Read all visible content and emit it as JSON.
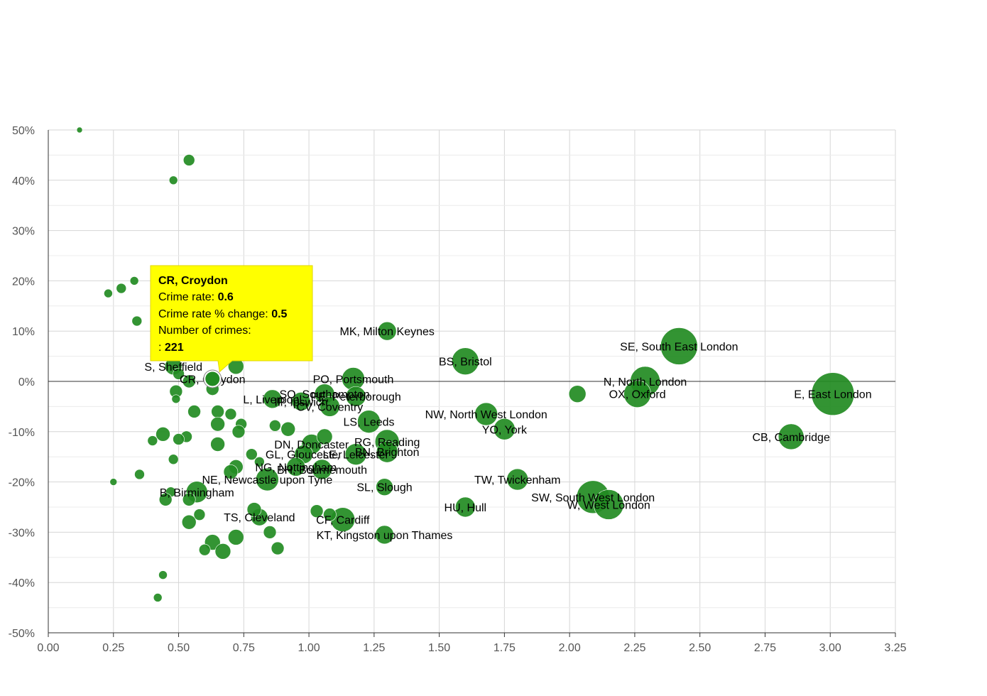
{
  "chart_data": {
    "type": "scatter",
    "x_ticks": [
      "0.00",
      "0.25",
      "0.50",
      "0.75",
      "1.00",
      "1.25",
      "1.50",
      "1.75",
      "2.00",
      "2.25",
      "2.50",
      "2.75",
      "3.00",
      "3.25"
    ],
    "y_ticks": [
      "50%",
      "40%",
      "30%",
      "20%",
      "10%",
      "0%",
      "-10%",
      "-20%",
      "-30%",
      "-40%",
      "-50%"
    ],
    "xlim": [
      0,
      3.25
    ],
    "ylim": [
      -50,
      50
    ],
    "grid": true,
    "bubble_color": "#228B22",
    "points": [
      {
        "label": "E, East London",
        "x": 3.01,
        "y": -2.5,
        "r": 30
      },
      {
        "label": "SE, South East London",
        "x": 2.42,
        "y": 7,
        "r": 26
      },
      {
        "label": "N, North London",
        "x": 2.29,
        "y": 0,
        "r": 21
      },
      {
        "label": "OX, Oxford",
        "x": 2.26,
        "y": -2.5,
        "r": 19
      },
      {
        "label": "CB, Cambridge",
        "x": 2.85,
        "y": -11,
        "r": 18
      },
      {
        "label": "SW, South West London",
        "x": 2.09,
        "y": -23,
        "r": 23
      },
      {
        "label": "W, West London",
        "x": 2.15,
        "y": -24.5,
        "r": 21
      },
      {
        "label": "",
        "x": 2.03,
        "y": -2.5,
        "r": 12
      },
      {
        "label": "BS, Bristol",
        "x": 1.6,
        "y": 4,
        "r": 19
      },
      {
        "label": "MK, Milton Keynes",
        "x": 1.3,
        "y": 10,
        "r": 13
      },
      {
        "label": "NW, North West London",
        "x": 1.68,
        "y": -6.5,
        "r": 16
      },
      {
        "label": "YO, York",
        "x": 1.75,
        "y": -9.5,
        "r": 15
      },
      {
        "label": "TW, Twickenham",
        "x": 1.8,
        "y": -19.5,
        "r": 15
      },
      {
        "label": "HU, Hull",
        "x": 1.6,
        "y": -25,
        "r": 14
      },
      {
        "label": "SL, Slough",
        "x": 1.29,
        "y": -21,
        "r": 12
      },
      {
        "label": "KT, Kingston upon Thames",
        "x": 1.29,
        "y": -30.5,
        "r": 13
      },
      {
        "label": "CF, Cardiff",
        "x": 1.13,
        "y": -27.5,
        "r": 17
      },
      {
        "label": "PO, Portsmouth",
        "x": 1.17,
        "y": 0.5,
        "r": 16
      },
      {
        "label": "SO, Southampton",
        "x": 1.06,
        "y": -2.5,
        "r": 14
      },
      {
        "label": "PE, Peterborough",
        "x": 1.18,
        "y": -3,
        "r": 14
      },
      {
        "label": "CV, Coventry",
        "x": 1.08,
        "y": -5,
        "r": 14
      },
      {
        "label": "LS, Leeds",
        "x": 1.23,
        "y": -8,
        "r": 16
      },
      {
        "label": "RG, Reading",
        "x": 1.3,
        "y": -12,
        "r": 17
      },
      {
        "label": "DN, Doncaster",
        "x": 1.01,
        "y": -12.5,
        "r": 14
      },
      {
        "label": "LE, Leicester",
        "x": 1.18,
        "y": -14.5,
        "r": 15
      },
      {
        "label": "BN, Brighton",
        "x": 1.3,
        "y": -14,
        "r": 15
      },
      {
        "label": "GL, Gloucester",
        "x": 0.98,
        "y": -14.5,
        "r": 13
      },
      {
        "label": "BH, Bournemouth",
        "x": 1.05,
        "y": -17.5,
        "r": 14
      },
      {
        "label": "NG, Nottingham",
        "x": 0.95,
        "y": -17,
        "r": 13
      },
      {
        "label": "NE, Newcastle upon Tyne",
        "x": 0.84,
        "y": -19.5,
        "r": 16
      },
      {
        "label": "TS, Cleveland",
        "x": 0.81,
        "y": -27,
        "r": 12
      },
      {
        "label": "L, Liverpool",
        "x": 0.86,
        "y": -3.5,
        "r": 13
      },
      {
        "label": "IP, Ipswich",
        "x": 0.97,
        "y": -4,
        "r": 13
      },
      {
        "label": "B, Birmingham",
        "x": 0.57,
        "y": -22,
        "r": 15
      },
      {
        "label": "S, Sheffield",
        "x": 0.48,
        "y": 3,
        "r": 12
      },
      {
        "label": "CR, Croydon",
        "x": 0.63,
        "y": 0.5,
        "r": 10
      },
      {
        "label": "",
        "x": 0.12,
        "y": 50,
        "r": 4
      },
      {
        "label": "",
        "x": 0.54,
        "y": 44,
        "r": 8
      },
      {
        "label": "",
        "x": 0.48,
        "y": 40,
        "r": 6
      },
      {
        "label": "",
        "x": 0.33,
        "y": 20,
        "r": 6
      },
      {
        "label": "",
        "x": 0.28,
        "y": 18.5,
        "r": 7
      },
      {
        "label": "",
        "x": 0.23,
        "y": 17.5,
        "r": 6
      },
      {
        "label": "",
        "x": 0.34,
        "y": 12,
        "r": 7
      },
      {
        "label": "",
        "x": 0.72,
        "y": 3,
        "r": 11
      },
      {
        "label": "",
        "x": 0.5,
        "y": 1.5,
        "r": 8
      },
      {
        "label": "",
        "x": 0.54,
        "y": 0,
        "r": 9
      },
      {
        "label": "",
        "x": 0.63,
        "y": -1.5,
        "r": 9
      },
      {
        "label": "",
        "x": 0.49,
        "y": -2,
        "r": 9
      },
      {
        "label": "",
        "x": 0.49,
        "y": -3.5,
        "r": 6
      },
      {
        "label": "",
        "x": 0.56,
        "y": -6,
        "r": 9
      },
      {
        "label": "",
        "x": 0.65,
        "y": -6,
        "r": 9
      },
      {
        "label": "",
        "x": 0.7,
        "y": -6.5,
        "r": 8
      },
      {
        "label": "",
        "x": 0.65,
        "y": -8.5,
        "r": 10
      },
      {
        "label": "",
        "x": 0.74,
        "y": -8.5,
        "r": 8
      },
      {
        "label": "",
        "x": 0.87,
        "y": -8.8,
        "r": 8
      },
      {
        "label": "",
        "x": 0.92,
        "y": -9.5,
        "r": 10
      },
      {
        "label": "",
        "x": 0.73,
        "y": -10,
        "r": 9
      },
      {
        "label": "",
        "x": 0.44,
        "y": -10.5,
        "r": 10
      },
      {
        "label": "",
        "x": 0.53,
        "y": -11,
        "r": 8
      },
      {
        "label": "",
        "x": 0.5,
        "y": -11.5,
        "r": 8
      },
      {
        "label": "",
        "x": 0.4,
        "y": -11.8,
        "r": 7
      },
      {
        "label": "",
        "x": 0.65,
        "y": -12.5,
        "r": 10
      },
      {
        "label": "",
        "x": 1.06,
        "y": -11,
        "r": 11
      },
      {
        "label": "",
        "x": 0.78,
        "y": -14.5,
        "r": 8
      },
      {
        "label": "",
        "x": 0.48,
        "y": -15.5,
        "r": 7
      },
      {
        "label": "",
        "x": 0.81,
        "y": -16,
        "r": 7
      },
      {
        "label": "",
        "x": 0.72,
        "y": -17,
        "r": 10
      },
      {
        "label": "",
        "x": 0.7,
        "y": -18,
        "r": 10
      },
      {
        "label": "",
        "x": 0.35,
        "y": -18.5,
        "r": 7
      },
      {
        "label": "",
        "x": 0.25,
        "y": -20,
        "r": 5
      },
      {
        "label": "",
        "x": 0.47,
        "y": -22,
        "r": 7
      },
      {
        "label": "",
        "x": 0.54,
        "y": -23.5,
        "r": 9
      },
      {
        "label": "",
        "x": 0.45,
        "y": -23.5,
        "r": 9
      },
      {
        "label": "",
        "x": 0.79,
        "y": -25.5,
        "r": 10
      },
      {
        "label": "",
        "x": 1.03,
        "y": -25.8,
        "r": 9
      },
      {
        "label": "",
        "x": 1.08,
        "y": -26.5,
        "r": 9
      },
      {
        "label": "",
        "x": 0.58,
        "y": -26.5,
        "r": 8
      },
      {
        "label": "",
        "x": 0.54,
        "y": -28,
        "r": 10
      },
      {
        "label": "",
        "x": 0.85,
        "y": -30,
        "r": 9
      },
      {
        "label": "",
        "x": 0.72,
        "y": -31,
        "r": 11
      },
      {
        "label": "",
        "x": 0.63,
        "y": -32,
        "r": 11
      },
      {
        "label": "",
        "x": 0.6,
        "y": -33.5,
        "r": 8
      },
      {
        "label": "",
        "x": 0.67,
        "y": -33.8,
        "r": 11
      },
      {
        "label": "",
        "x": 0.88,
        "y": -33.2,
        "r": 9
      },
      {
        "label": "",
        "x": 0.44,
        "y": -38.5,
        "r": 6
      },
      {
        "label": "",
        "x": 0.42,
        "y": -43,
        "r": 6
      }
    ],
    "tooltip": {
      "title": "CR, Croydon",
      "rate_label": "Crime rate: ",
      "rate_value": "0.6",
      "change_label": "Crime rate % change: ",
      "change_value": "0.5",
      "count_label_1": "Number of crimes:",
      "count_label_2": ": ",
      "count_value": "221",
      "x": 0.63,
      "y": 0.5
    }
  }
}
